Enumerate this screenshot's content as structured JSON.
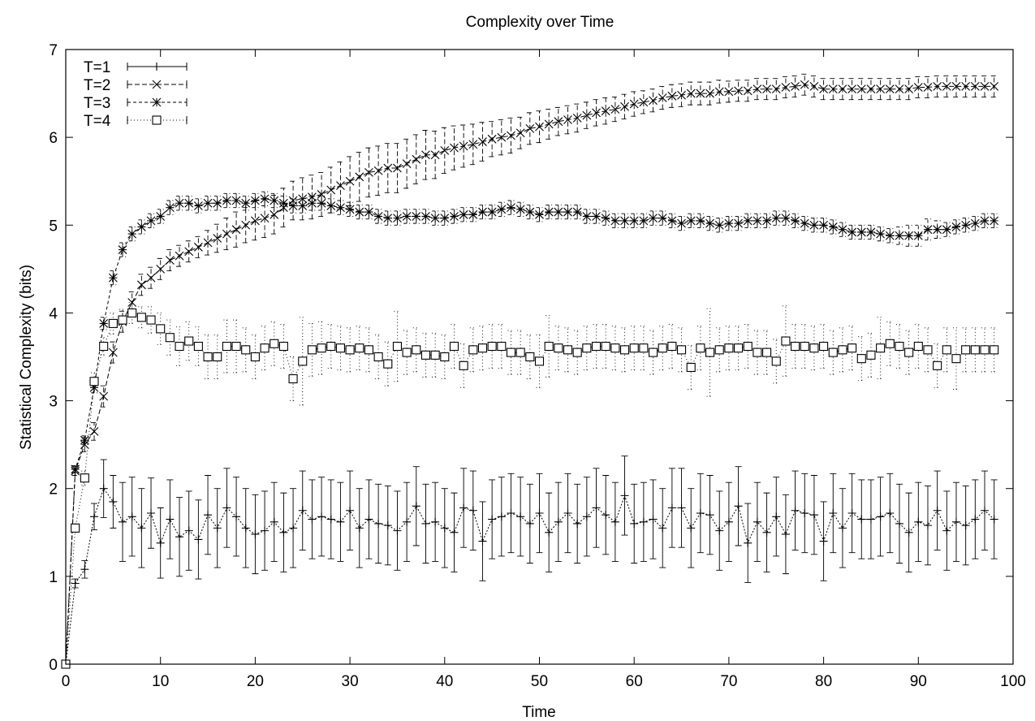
{
  "chart_data": {
    "type": "line",
    "title": "Complexity over Time",
    "xlabel": "Time",
    "ylabel": "Statistical Complexity (bits)",
    "xlim": [
      0,
      100
    ],
    "ylim": [
      0,
      7
    ],
    "xticks": [
      0,
      10,
      20,
      30,
      40,
      50,
      60,
      70,
      80,
      90,
      100
    ],
    "yticks": [
      0,
      1,
      2,
      3,
      4,
      5,
      6,
      7
    ],
    "grid": false,
    "legend_position": "top-left",
    "error_bars": true,
    "series": [
      {
        "name": "T=1",
        "marker": "plus",
        "dash": "dotted-fine",
        "errors": [
          0,
          0.05,
          0.1,
          0.15,
          0.33,
          0.3,
          0.45,
          0.45,
          0.45,
          0.4,
          0.4,
          0.45,
          0.45,
          0.45,
          0.45,
          0.45,
          0.45,
          0.45,
          0.45,
          0.45,
          0.45,
          0.45,
          0.45,
          0.45,
          0.45,
          0.45,
          0.45,
          0.45,
          0.45,
          0.45,
          0.45,
          0.45,
          0.45,
          0.45,
          0.45,
          0.45,
          0.45,
          0.45,
          0.45,
          0.45,
          0.45,
          0.45,
          0.45,
          0.45,
          0.45,
          0.45,
          0.45,
          0.45,
          0.45,
          0.45,
          0.45,
          0.45,
          0.45,
          0.45,
          0.45,
          0.45,
          0.45,
          0.45,
          0.45,
          0.45,
          0.45,
          0.45,
          0.45,
          0.45,
          0.45,
          0.45,
          0.45,
          0.45,
          0.45,
          0.45,
          0.45,
          0.45,
          0.45,
          0.45,
          0.45,
          0.45,
          0.45,
          0.45,
          0.45,
          0.45,
          0.45,
          0.45,
          0.45,
          0.45,
          0.45,
          0.45,
          0.45,
          0.45,
          0.45,
          0.45,
          0.45,
          0.45,
          0.45,
          0.45,
          0.45,
          0.45,
          0.45,
          0.45,
          0.45
        ],
        "values": [
          0.0,
          0.92,
          1.08,
          1.68,
          2.0,
          1.85,
          1.62,
          1.68,
          1.55,
          1.72,
          1.38,
          1.65,
          1.45,
          1.52,
          1.42,
          1.7,
          1.55,
          1.78,
          1.68,
          1.55,
          1.48,
          1.52,
          1.62,
          1.5,
          1.55,
          1.75,
          1.65,
          1.68,
          1.65,
          1.62,
          1.75,
          1.55,
          1.65,
          1.6,
          1.58,
          1.52,
          1.62,
          1.8,
          1.6,
          1.62,
          1.55,
          1.5,
          1.78,
          1.75,
          1.4,
          1.65,
          1.68,
          1.72,
          1.68,
          1.6,
          1.72,
          1.5,
          1.62,
          1.72,
          1.6,
          1.68,
          1.78,
          1.7,
          1.62,
          1.92,
          1.6,
          1.62,
          1.65,
          1.55,
          1.78,
          1.78,
          1.55,
          1.72,
          1.7,
          1.52,
          1.62,
          1.8,
          1.38,
          1.62,
          1.5,
          1.68,
          1.48,
          1.75,
          1.72,
          1.7,
          1.4,
          1.72,
          1.55,
          1.72,
          1.65,
          1.65,
          1.68,
          1.72,
          1.6,
          1.5,
          1.62,
          1.58,
          1.75,
          1.52,
          1.62,
          1.58,
          1.65,
          1.75,
          1.65
        ]
      },
      {
        "name": "T=2",
        "marker": "x",
        "dash": "dashed",
        "errors": [
          0,
          0.05,
          0.08,
          0.1,
          0.12,
          0.12,
          0.12,
          0.12,
          0.12,
          0.12,
          0.12,
          0.12,
          0.12,
          0.12,
          0.12,
          0.14,
          0.16,
          0.18,
          0.2,
          0.2,
          0.22,
          0.22,
          0.22,
          0.22,
          0.22,
          0.24,
          0.25,
          0.25,
          0.26,
          0.27,
          0.28,
          0.28,
          0.28,
          0.28,
          0.28,
          0.28,
          0.28,
          0.28,
          0.28,
          0.27,
          0.26,
          0.25,
          0.24,
          0.23,
          0.22,
          0.2,
          0.2,
          0.2,
          0.18,
          0.18,
          0.18,
          0.17,
          0.16,
          0.16,
          0.16,
          0.15,
          0.15,
          0.15,
          0.14,
          0.14,
          0.14,
          0.13,
          0.13,
          0.13,
          0.13,
          0.13,
          0.13,
          0.13,
          0.13,
          0.13,
          0.12,
          0.12,
          0.12,
          0.12,
          0.12,
          0.12,
          0.12,
          0.12,
          0.12,
          0.12,
          0.12,
          0.12,
          0.12,
          0.12,
          0.12,
          0.12,
          0.12,
          0.12,
          0.12,
          0.12,
          0.12,
          0.12,
          0.12,
          0.12,
          0.12,
          0.12,
          0.12,
          0.12,
          0.12
        ],
        "values": [
          0.0,
          2.2,
          2.5,
          2.65,
          3.05,
          3.55,
          3.9,
          4.12,
          4.32,
          4.4,
          4.5,
          4.6,
          4.65,
          4.7,
          4.75,
          4.8,
          4.85,
          4.9,
          4.95,
          5.0,
          5.05,
          5.08,
          5.12,
          5.2,
          5.28,
          5.3,
          5.32,
          5.35,
          5.4,
          5.45,
          5.5,
          5.55,
          5.6,
          5.62,
          5.65,
          5.65,
          5.7,
          5.75,
          5.8,
          5.8,
          5.85,
          5.88,
          5.9,
          5.92,
          5.95,
          5.98,
          6.0,
          6.02,
          6.05,
          6.1,
          6.12,
          6.15,
          6.18,
          6.2,
          6.22,
          6.25,
          6.28,
          6.3,
          6.32,
          6.35,
          6.38,
          6.4,
          6.42,
          6.45,
          6.47,
          6.48,
          6.5,
          6.5,
          6.5,
          6.52,
          6.52,
          6.53,
          6.53,
          6.55,
          6.55,
          6.55,
          6.57,
          6.58,
          6.6,
          6.58,
          6.55,
          6.55,
          6.55,
          6.55,
          6.55,
          6.55,
          6.55,
          6.55,
          6.55,
          6.55,
          6.57,
          6.57,
          6.58,
          6.58,
          6.58,
          6.58,
          6.58,
          6.58,
          6.58
        ]
      },
      {
        "name": "T=3",
        "marker": "star",
        "dash": "short-dashed",
        "errors": [
          0,
          0.04,
          0.05,
          0.06,
          0.07,
          0.08,
          0.08,
          0.08,
          0.08,
          0.08,
          0.08,
          0.08,
          0.08,
          0.08,
          0.08,
          0.08,
          0.08,
          0.08,
          0.08,
          0.08,
          0.08,
          0.08,
          0.08,
          0.08,
          0.08,
          0.08,
          0.08,
          0.08,
          0.08,
          0.08,
          0.08,
          0.08,
          0.08,
          0.08,
          0.08,
          0.08,
          0.08,
          0.08,
          0.08,
          0.08,
          0.08,
          0.08,
          0.08,
          0.08,
          0.08,
          0.08,
          0.08,
          0.08,
          0.08,
          0.08,
          0.08,
          0.08,
          0.08,
          0.08,
          0.08,
          0.08,
          0.08,
          0.08,
          0.08,
          0.08,
          0.08,
          0.08,
          0.08,
          0.08,
          0.08,
          0.08,
          0.08,
          0.08,
          0.08,
          0.08,
          0.08,
          0.08,
          0.08,
          0.08,
          0.08,
          0.08,
          0.08,
          0.08,
          0.08,
          0.08,
          0.08,
          0.08,
          0.08,
          0.08,
          0.08,
          0.08,
          0.08,
          0.08,
          0.1,
          0.12,
          0.12,
          0.12,
          0.1,
          0.08,
          0.08,
          0.08,
          0.08,
          0.08,
          0.08
        ],
        "values": [
          0.0,
          2.22,
          2.55,
          3.15,
          3.88,
          4.4,
          4.72,
          4.9,
          4.98,
          5.05,
          5.1,
          5.2,
          5.25,
          5.25,
          5.22,
          5.25,
          5.25,
          5.28,
          5.28,
          5.25,
          5.28,
          5.3,
          5.28,
          5.25,
          5.22,
          5.22,
          5.25,
          5.25,
          5.22,
          5.2,
          5.18,
          5.15,
          5.15,
          5.1,
          5.08,
          5.08,
          5.1,
          5.1,
          5.1,
          5.08,
          5.08,
          5.1,
          5.12,
          5.12,
          5.15,
          5.15,
          5.18,
          5.2,
          5.18,
          5.15,
          5.12,
          5.15,
          5.15,
          5.15,
          5.15,
          5.1,
          5.1,
          5.08,
          5.05,
          5.05,
          5.05,
          5.05,
          5.08,
          5.08,
          5.05,
          5.02,
          5.05,
          5.05,
          5.02,
          5.0,
          5.02,
          5.02,
          5.05,
          5.05,
          5.05,
          5.08,
          5.08,
          5.05,
          5.02,
          5.0,
          5.0,
          4.98,
          4.95,
          4.92,
          4.92,
          4.92,
          4.9,
          4.88,
          4.88,
          4.88,
          4.88,
          4.95,
          4.95,
          4.95,
          4.98,
          5.0,
          5.02,
          5.05,
          5.05
        ]
      },
      {
        "name": "T=4",
        "marker": "square",
        "dash": "dotted",
        "errors": [
          0,
          0.05,
          0.08,
          0.1,
          0.1,
          0.12,
          0.12,
          0.12,
          0.12,
          0.15,
          0.18,
          0.2,
          0.22,
          0.22,
          0.22,
          0.25,
          0.25,
          0.3,
          0.3,
          0.25,
          0.25,
          0.25,
          0.25,
          0.25,
          0.25,
          0.5,
          0.3,
          0.3,
          0.25,
          0.25,
          0.25,
          0.25,
          0.25,
          0.25,
          0.25,
          0.4,
          0.25,
          0.25,
          0.25,
          0.25,
          0.25,
          0.25,
          0.25,
          0.25,
          0.25,
          0.25,
          0.25,
          0.25,
          0.25,
          0.25,
          0.3,
          0.35,
          0.25,
          0.25,
          0.25,
          0.25,
          0.25,
          0.25,
          0.25,
          0.25,
          0.25,
          0.25,
          0.25,
          0.25,
          0.25,
          0.25,
          0.25,
          0.25,
          0.5,
          0.25,
          0.25,
          0.25,
          0.25,
          0.25,
          0.25,
          0.25,
          0.4,
          0.25,
          0.25,
          0.25,
          0.25,
          0.25,
          0.25,
          0.25,
          0.25,
          0.25,
          0.35,
          0.25,
          0.25,
          0.25,
          0.25,
          0.25,
          0.25,
          0.25,
          0.35,
          0.25,
          0.25,
          0.25,
          0.25
        ],
        "values": [
          0.0,
          1.55,
          2.12,
          3.22,
          3.62,
          3.88,
          3.92,
          4.0,
          3.95,
          3.92,
          3.82,
          3.72,
          3.62,
          3.68,
          3.62,
          3.5,
          3.5,
          3.62,
          3.62,
          3.58,
          3.5,
          3.6,
          3.65,
          3.62,
          3.25,
          3.45,
          3.58,
          3.6,
          3.62,
          3.6,
          3.58,
          3.6,
          3.58,
          3.5,
          3.42,
          3.62,
          3.55,
          3.58,
          3.52,
          3.52,
          3.5,
          3.62,
          3.4,
          3.58,
          3.6,
          3.62,
          3.62,
          3.55,
          3.55,
          3.5,
          3.45,
          3.62,
          3.6,
          3.58,
          3.55,
          3.6,
          3.62,
          3.62,
          3.6,
          3.58,
          3.6,
          3.6,
          3.55,
          3.6,
          3.62,
          3.58,
          3.38,
          3.6,
          3.55,
          3.58,
          3.6,
          3.6,
          3.62,
          3.55,
          3.55,
          3.45,
          3.68,
          3.62,
          3.62,
          3.6,
          3.62,
          3.55,
          3.58,
          3.6,
          3.48,
          3.52,
          3.6,
          3.65,
          3.62,
          3.55,
          3.62,
          3.58,
          3.4,
          3.58,
          3.48,
          3.58,
          3.58,
          3.58,
          3.58
        ]
      }
    ]
  }
}
